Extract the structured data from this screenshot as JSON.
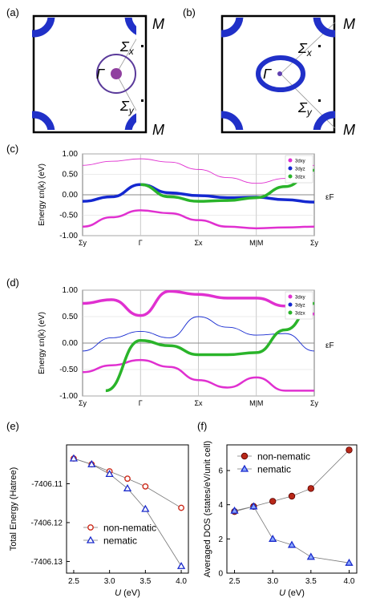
{
  "panel_labels": {
    "a": "(a)",
    "b": "(b)",
    "c": "(c)",
    "d": "(d)",
    "e": "(e)",
    "f": "(f)"
  },
  "fermi_surface": {
    "point_labels": {
      "gamma": "Γ",
      "m_top": "M",
      "m_bottom": "M",
      "sigma_x": "Σ",
      "sigma_x_sub": "x",
      "sigma_y": "Σ",
      "sigma_y_sub": "y"
    }
  },
  "colors": {
    "d_xy": "#e030d0",
    "d_yz": "#1428d0",
    "d_zx": "#2ab42a",
    "marker_red": "#cc2a1a",
    "marker_blue": "#1a2acc"
  },
  "chart_data": [
    {
      "type": "line",
      "panel": "c",
      "ylabel": "Energy εn(k) (eV)",
      "ylim": [
        -1.0,
        1.0
      ],
      "yticks": [
        "1.00",
        "0.50",
        "0.00",
        "-0.50",
        "-1.00"
      ],
      "x_ticks": [
        "Σy",
        "Γ",
        "Σx",
        "M|M",
        "Σy"
      ],
      "fermi_label": "εF",
      "legend": [
        "3dxy",
        "3dyz",
        "3dzx"
      ],
      "grid": true,
      "legend_position": "top-right",
      "series": [
        {
          "name": "3dxy",
          "x": [
            0,
            0.5,
            1,
            1.5,
            2,
            2.5,
            3,
            3.5,
            4
          ],
          "y": [
            -0.78,
            -0.55,
            -0.38,
            -0.45,
            -0.62,
            -0.78,
            -0.82,
            -0.8,
            -0.78
          ]
        },
        {
          "name": "3dxy",
          "x": [
            0,
            0.5,
            1,
            1.5,
            2,
            2.5,
            3,
            3.5,
            4
          ],
          "y": [
            0.72,
            0.82,
            0.88,
            0.8,
            0.62,
            0.42,
            0.28,
            0.4,
            0.72
          ]
        },
        {
          "name": "3dyz",
          "x": [
            0,
            0.5,
            1,
            1.5,
            2,
            2.5,
            3,
            3.5,
            4
          ],
          "y": [
            -0.16,
            -0.05,
            0.25,
            0.05,
            -0.02,
            -0.07,
            -0.06,
            -0.12,
            -0.18
          ]
        },
        {
          "name": "3dzx",
          "x": [
            1,
            1.5,
            2,
            2.5,
            3,
            3.5,
            4
          ],
          "y": [
            0.25,
            -0.05,
            -0.16,
            -0.14,
            -0.07,
            0.2,
            0.6
          ]
        }
      ]
    },
    {
      "type": "line",
      "panel": "d",
      "ylabel": "Energy εn(k) (eV)",
      "ylim": [
        -1.0,
        1.0
      ],
      "yticks": [
        "1.00",
        "0.50",
        "0.00",
        "-0.50",
        "-1.00"
      ],
      "x_ticks": [
        "Σy",
        "Γ",
        "Σx",
        "M|M",
        "Σy"
      ],
      "fermi_label": "εF",
      "legend": [
        "3dxy",
        "3dyz",
        "3dzx"
      ],
      "grid": true,
      "legend_position": "top-right",
      "series": [
        {
          "name": "3dxy",
          "x": [
            0,
            0.5,
            1,
            1.5,
            2,
            2.5,
            3,
            3.5,
            4
          ],
          "y": [
            -0.55,
            -0.42,
            -0.32,
            -0.45,
            -0.7,
            -0.84,
            -0.65,
            -0.9,
            -0.9
          ]
        },
        {
          "name": "3dyz",
          "x": [
            0,
            0.5,
            1,
            1.5,
            2,
            2.5,
            3,
            3.5,
            4
          ],
          "y": [
            -0.15,
            0.1,
            0.22,
            0.1,
            0.5,
            0.3,
            0.15,
            0.18,
            -0.15
          ]
        },
        {
          "name": "3dzx",
          "x": [
            0.4,
            1,
            1.5,
            2,
            2.5,
            3,
            3.5,
            4
          ],
          "y": [
            -0.9,
            0.05,
            -0.05,
            -0.22,
            -0.22,
            -0.18,
            0.25,
            0.75
          ]
        },
        {
          "name": "3dxy",
          "x": [
            0,
            0.5,
            1,
            1.5,
            2,
            2.5,
            3,
            3.5,
            4
          ],
          "y": [
            0.75,
            0.82,
            0.52,
            0.98,
            0.92,
            0.85,
            0.85,
            0.7,
            0.55
          ]
        }
      ]
    },
    {
      "type": "line",
      "panel": "e",
      "ylabel": "Total Energy (Hatree)",
      "xlabel_var": "U",
      "xlabel_unit": "(eV)",
      "xlim": [
        2.4,
        4.1
      ],
      "ylim": [
        -7406.133,
        -7406.1
      ],
      "xticks": [
        "2.5",
        "3.0",
        "3.5",
        "4.0"
      ],
      "yticks": [
        "-7406.11",
        "-7406.12",
        "-7406.13"
      ],
      "legend_position": "bottom-center",
      "series": [
        {
          "name": "non-nematic",
          "x": [
            2.5,
            2.75,
            3.0,
            3.25,
            3.5,
            4.0
          ],
          "y": [
            -7406.1035,
            -7406.105,
            -7406.1068,
            -7406.1087,
            -7406.1107,
            -7406.1162
          ]
        },
        {
          "name": "nematic",
          "x": [
            2.5,
            2.75,
            3.0,
            3.25,
            3.5,
            4.0
          ],
          "y": [
            -7406.1035,
            -7406.105,
            -7406.1075,
            -7406.1112,
            -7406.1165,
            -7406.1312
          ]
        }
      ]
    },
    {
      "type": "line",
      "panel": "f",
      "ylabel": "Averaged DOS (states/eV/unit cell)",
      "xlabel_var": "U",
      "xlabel_unit": "(eV)",
      "xlim": [
        2.4,
        4.1
      ],
      "ylim": [
        0,
        7.5
      ],
      "xticks": [
        "2.5",
        "3.0",
        "3.5",
        "4.0"
      ],
      "yticks": [
        "0",
        "2",
        "4",
        "6"
      ],
      "legend_position": "top-left",
      "series": [
        {
          "name": "non-nematic",
          "x": [
            2.5,
            2.75,
            3.0,
            3.25,
            3.5,
            4.0
          ],
          "y": [
            3.6,
            3.9,
            4.2,
            4.5,
            4.95,
            7.2
          ]
        },
        {
          "name": "nematic",
          "x": [
            2.5,
            2.75,
            3.0,
            3.25,
            3.5,
            4.0
          ],
          "y": [
            3.65,
            3.9,
            2.0,
            1.65,
            0.95,
            0.6
          ]
        }
      ]
    }
  ]
}
